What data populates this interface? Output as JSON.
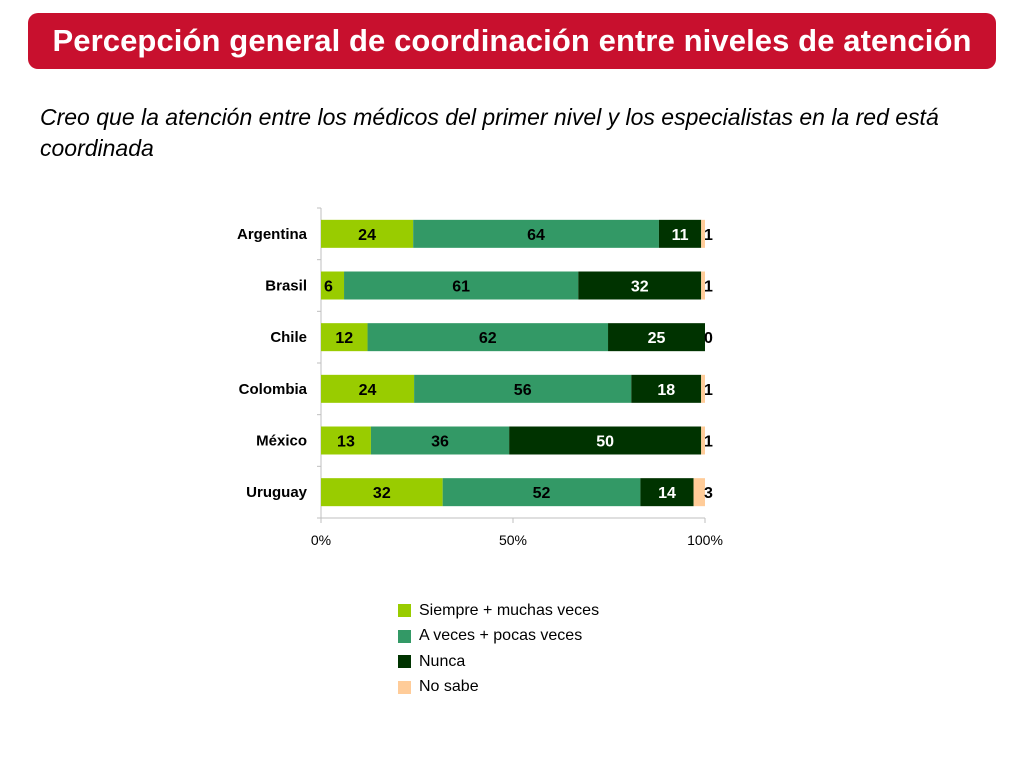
{
  "header": {
    "title": "Percepción general de coordinación entre niveles de atención"
  },
  "question": {
    "text": "Creo que la atención entre los médicos del primer nivel y los especialistas en la red está coordinada"
  },
  "chart_data": {
    "type": "bar",
    "orientation": "horizontal",
    "stacked": true,
    "percent_stacked": true,
    "categories": [
      "Argentina",
      "Brasil",
      "Chile",
      "Colombia",
      "México",
      "Uruguay"
    ],
    "series": [
      {
        "name": "Siempre + muchas veces",
        "color": "#99cc00",
        "values": [
          24,
          6,
          12,
          24,
          13,
          32
        ]
      },
      {
        "name": "A veces + pocas veces",
        "color": "#339966",
        "values": [
          64,
          61,
          62,
          56,
          36,
          52
        ]
      },
      {
        "name": "Nunca",
        "color": "#003300",
        "values": [
          11,
          32,
          25,
          18,
          50,
          14
        ]
      },
      {
        "name": "No sabe",
        "color": "#ffcc99",
        "values": [
          1,
          1,
          0,
          1,
          1,
          3
        ]
      }
    ],
    "xticks": [
      "0%",
      "50%",
      "100%"
    ],
    "xlim": [
      0,
      100
    ],
    "grid": false,
    "legend_position": "bottom"
  }
}
